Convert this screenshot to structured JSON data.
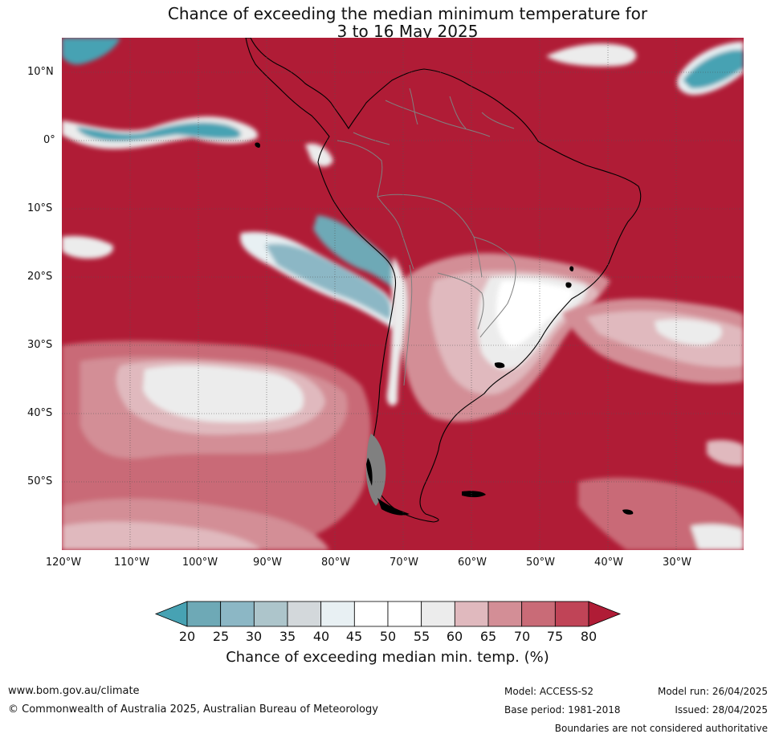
{
  "title": {
    "line1": "Chance of exceeding the median minimum temperature for",
    "line2": "3 to 16 May 2025"
  },
  "map": {
    "lat_labels": [
      "10°N",
      "0°",
      "10°S",
      "20°S",
      "30°S",
      "40°S",
      "50°S"
    ],
    "lon_labels": [
      "120°W",
      "110°W",
      "100°W",
      "90°W",
      "80°W",
      "70°W",
      "60°W",
      "50°W",
      "40°W",
      "30°W"
    ],
    "dominant_color": "#b01c36",
    "land_outline_color": "#000000",
    "border_color": "#808080"
  },
  "colorbar": {
    "ticks": [
      "20",
      "25",
      "30",
      "35",
      "40",
      "45",
      "50",
      "55",
      "60",
      "65",
      "70",
      "75",
      "80"
    ],
    "colors": [
      "#47a2b3",
      "#6ea9b6",
      "#8cb7c5",
      "#adc5cb",
      "#d3d8db",
      "#e8f0f3",
      "#ffffff",
      "#ffffff",
      "#ececec",
      "#e0b9be",
      "#d38e96",
      "#c96b77",
      "#c04457",
      "#b01c36"
    ],
    "label": "Chance of exceeding median min. temp. (%)"
  },
  "footer": {
    "website": "www.bom.gov.au/climate",
    "copyright": "© Commonwealth of Australia 2025, Australian Bureau of Meteorology",
    "model": "Model: ACCESS-S2",
    "base_period": "Base period: 1981-2018",
    "model_run": "Model run: 26/04/2025",
    "issued": "Issued: 28/04/2025",
    "disclaimer": "Boundaries are not considered authoritative"
  }
}
